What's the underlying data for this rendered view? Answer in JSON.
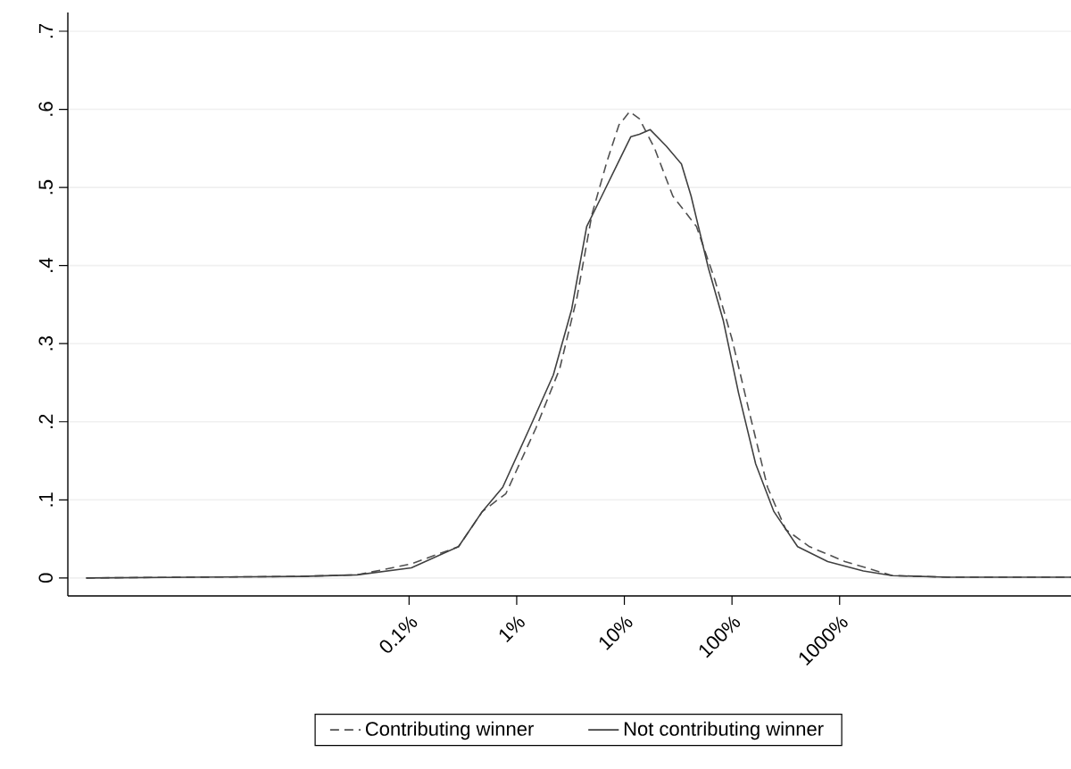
{
  "chart_data": {
    "type": "line",
    "log": "x",
    "xlim": [
      6.76e-05,
      141000
    ],
    "ylim": [
      -0.023,
      0.724
    ],
    "xticks": [
      {
        "value": 0.1,
        "label": "0.1%"
      },
      {
        "value": 1,
        "label": "1%"
      },
      {
        "value": 10,
        "label": "10%"
      },
      {
        "value": 100,
        "label": "100%"
      },
      {
        "value": 1000,
        "label": "1000%"
      }
    ],
    "yticks": [
      0,
      {
        "value": 0.1,
        "label": ".1"
      },
      {
        "value": 0.2,
        "label": ".2"
      },
      {
        "value": 0.3,
        "label": ".3"
      },
      {
        "value": 0.4,
        "label": ".4"
      },
      {
        "value": 0.5,
        "label": ".5"
      },
      {
        "value": 0.6,
        "label": ".6"
      },
      {
        "value": 0.7,
        "label": ".7"
      }
    ],
    "grid": "y",
    "legend": "bottom",
    "marker": "none",
    "series": [
      {
        "name": "Contributing winner",
        "color": "#505050",
        "line_style": "dashed",
        "x": [
          0.0001,
          0.001,
          0.01,
          0.0331,
          0.105,
          0.288,
          0.479,
          0.794,
          1.51,
          2.51,
          3.63,
          5.01,
          6.92,
          8.91,
          11.2,
          13.8,
          19.1,
          28.2,
          46.8,
          69.2,
          100,
          148,
          214,
          316,
          525,
          1120,
          3090,
          10000,
          100000,
          141000
        ],
        "values": [
          0,
          0.001,
          0.002,
          0.004,
          0.018,
          0.04,
          0.085,
          0.108,
          0.192,
          0.268,
          0.359,
          0.466,
          0.534,
          0.58,
          0.597,
          0.588,
          0.55,
          0.489,
          0.45,
          0.382,
          0.306,
          0.207,
          0.116,
          0.062,
          0.04,
          0.021,
          0.003,
          0.001,
          0.001,
          0.001
        ]
      },
      {
        "name": "Not contributing winner",
        "color": "#404040",
        "line_style": "solid",
        "x": [
          0.0001,
          0.001,
          0.01,
          0.0331,
          0.105,
          0.288,
          0.479,
          0.741,
          1.32,
          2.19,
          3.24,
          4.47,
          6.17,
          8.91,
          11.5,
          13.8,
          17.4,
          24.5,
          33.9,
          41.7,
          60.3,
          83.2,
          115,
          166,
          245,
          407,
          776,
          1660,
          3090,
          10000,
          100000,
          141000
        ],
        "values": [
          0,
          0.001,
          0.002,
          0.004,
          0.013,
          0.04,
          0.085,
          0.116,
          0.192,
          0.26,
          0.344,
          0.45,
          0.489,
          0.534,
          0.565,
          0.568,
          0.574,
          0.553,
          0.53,
          0.489,
          0.397,
          0.329,
          0.237,
          0.146,
          0.085,
          0.04,
          0.021,
          0.009,
          0.003,
          0.001,
          0.001,
          0.001
        ]
      }
    ]
  }
}
